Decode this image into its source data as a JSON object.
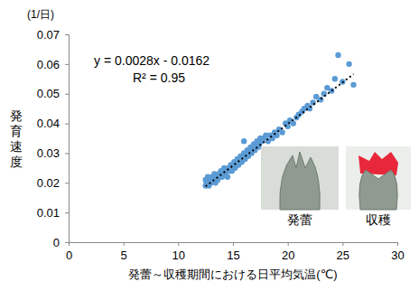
{
  "chart_data": {
    "type": "scatter",
    "x_label": "発蕾～収穫期間における日平均気温(℃)",
    "y_label": "発育速度",
    "y_unit": "(1/日)",
    "xlim": [
      0,
      30
    ],
    "xticks": [
      0,
      5,
      10,
      15,
      20,
      25,
      30
    ],
    "ylim": [
      0,
      0.07
    ],
    "yticks": [
      0,
      0.01,
      0.02,
      0.03,
      0.04,
      0.05,
      0.06,
      0.07
    ],
    "grid": false,
    "series": [
      {
        "type": "scatter",
        "color": "#5b9bd5",
        "marker": "circle",
        "x": [
          12.5,
          12.5,
          12.6,
          12.7,
          12.8,
          12.9,
          13.0,
          13.1,
          13.2,
          13.3,
          13.4,
          13.5,
          13.6,
          13.7,
          13.8,
          13.9,
          14.0,
          14.1,
          14.2,
          14.3,
          14.4,
          14.5,
          14.6,
          14.7,
          14.8,
          14.9,
          15.0,
          15.1,
          15.2,
          15.3,
          15.4,
          15.5,
          15.6,
          15.7,
          15.8,
          15.9,
          16.0,
          16.0,
          16.1,
          16.2,
          16.3,
          16.4,
          16.5,
          16.6,
          16.7,
          16.8,
          16.9,
          17.0,
          17.1,
          17.2,
          17.3,
          17.4,
          17.5,
          17.6,
          17.8,
          18.0,
          18.2,
          18.4,
          18.6,
          18.8,
          19.0,
          19.2,
          19.5,
          19.8,
          20.0,
          20.2,
          20.5,
          20.8,
          21.0,
          21.3,
          21.5,
          21.8,
          22.0,
          22.3,
          22.6,
          23.0,
          23.3,
          23.6,
          24.0,
          24.3,
          24.6,
          25.0,
          25.6,
          26.0
        ],
        "values": [
          0.019,
          0.021,
          0.02,
          0.022,
          0.019,
          0.021,
          0.02,
          0.022,
          0.021,
          0.023,
          0.02,
          0.022,
          0.021,
          0.023,
          0.022,
          0.024,
          0.022,
          0.023,
          0.025,
          0.023,
          0.024,
          0.022,
          0.025,
          0.024,
          0.026,
          0.024,
          0.025,
          0.027,
          0.025,
          0.026,
          0.028,
          0.026,
          0.027,
          0.029,
          0.027,
          0.028,
          0.03,
          0.034,
          0.028,
          0.029,
          0.031,
          0.029,
          0.03,
          0.032,
          0.03,
          0.031,
          0.033,
          0.031,
          0.032,
          0.034,
          0.032,
          0.033,
          0.035,
          0.034,
          0.035,
          0.036,
          0.034,
          0.036,
          0.035,
          0.037,
          0.036,
          0.038,
          0.037,
          0.04,
          0.039,
          0.041,
          0.04,
          0.042,
          0.043,
          0.044,
          0.045,
          0.046,
          0.045,
          0.047,
          0.049,
          0.048,
          0.05,
          0.052,
          0.051,
          0.055,
          0.063,
          0.054,
          0.06,
          0.053
        ]
      },
      {
        "type": "line",
        "color": "#000000",
        "line_style": "dotted",
        "x": [
          12.5,
          26
        ],
        "values": [
          0.0188,
          0.0566
        ]
      }
    ],
    "annotations": [
      "y = 0.0028x - 0.0162",
      "R² = 0.95"
    ],
    "image_labels": [
      "発蕾",
      "収穫"
    ]
  }
}
